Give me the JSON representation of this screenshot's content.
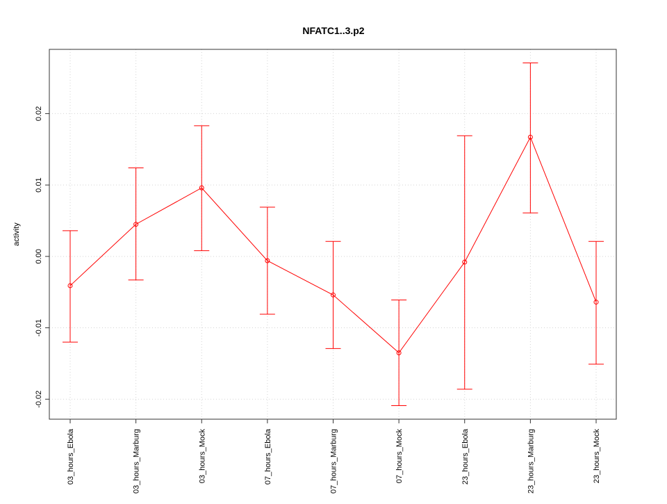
{
  "chart_data": {
    "type": "line",
    "title": "NFATC1..3.p2",
    "xlabel": "",
    "ylabel": "activity",
    "categories": [
      "03_hours_Ebola",
      "03_hours_Marburg",
      "03_hours_Mock",
      "07_hours_Ebola",
      "07_hours_Marburg",
      "07_hours_Mock",
      "23_hours_Ebola",
      "23_hours_Marburg",
      "23_hours_Mock"
    ],
    "values": [
      -0.0041,
      0.0045,
      0.0096,
      -0.0006,
      -0.0054,
      -0.0135,
      -0.0008,
      0.0167,
      -0.0064
    ],
    "upper": [
      0.0036,
      0.0124,
      0.0183,
      0.0069,
      0.0021,
      -0.0061,
      0.0169,
      0.0271,
      0.0021
    ],
    "lower": [
      -0.012,
      -0.0033,
      0.0008,
      -0.0081,
      -0.0129,
      -0.0209,
      -0.0186,
      0.0061,
      -0.0151
    ],
    "yticks": [
      -0.02,
      -0.01,
      0.0,
      0.01,
      0.02
    ],
    "ytick_labels": [
      "-0.02",
      "-0.01",
      "0.00",
      "0.01",
      "0.02"
    ],
    "ylim": [
      -0.0228,
      0.029
    ],
    "grid": true,
    "color": "#ff0000"
  }
}
